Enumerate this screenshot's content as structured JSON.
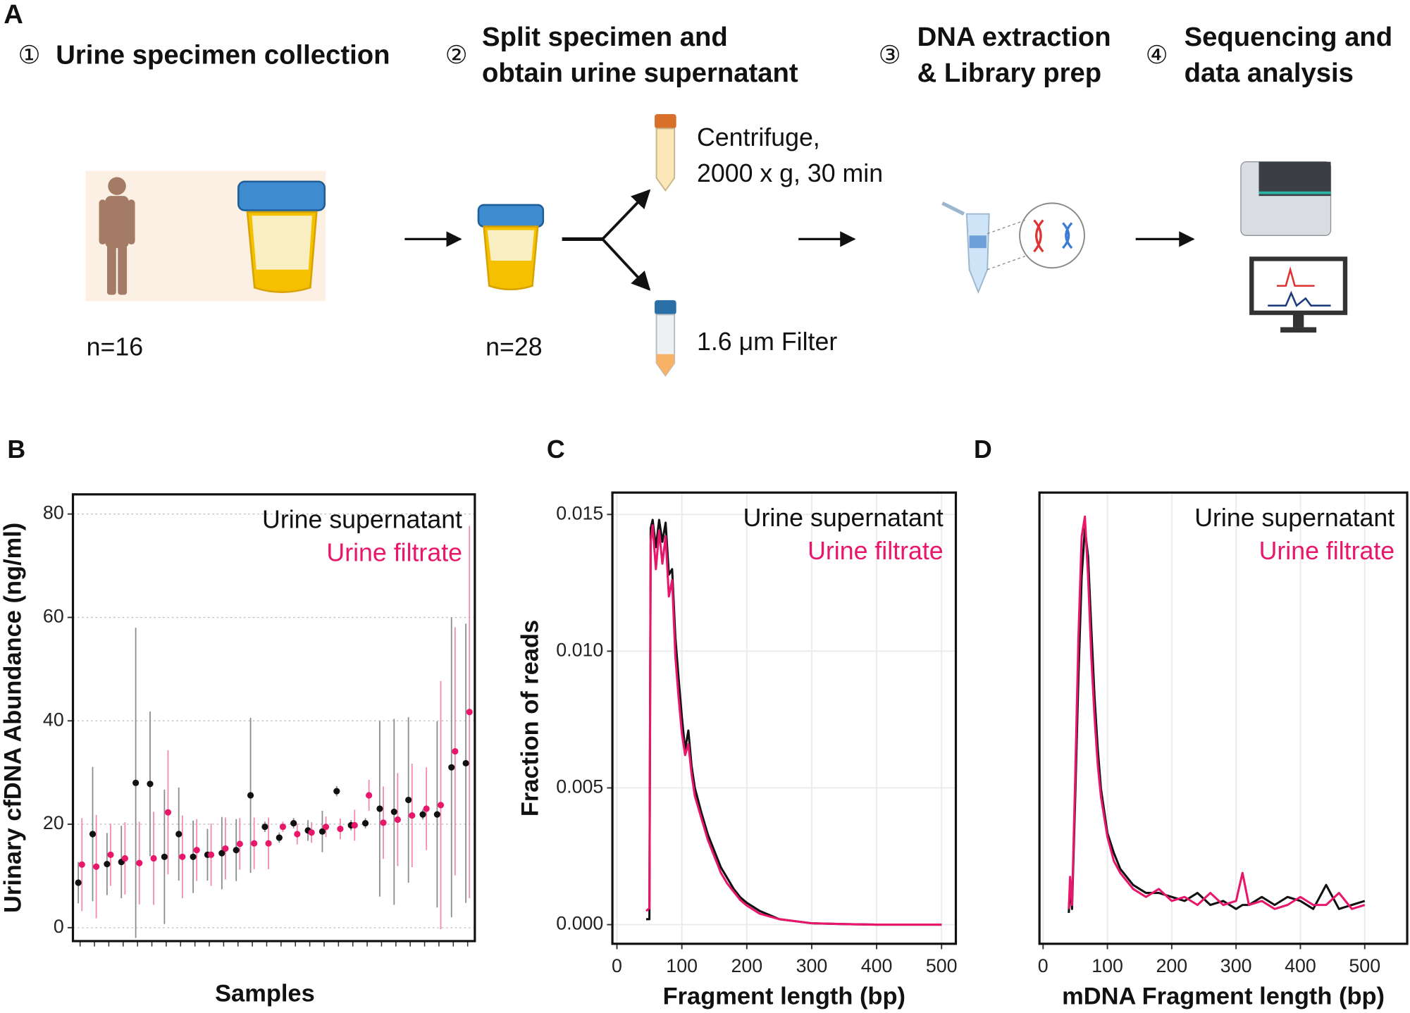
{
  "panel_a": {
    "label": "A",
    "steps": [
      {
        "number": "①",
        "lines": [
          "Urine specimen collection"
        ]
      },
      {
        "number": "②",
        "lines": [
          "Split specimen and",
          "obtain urine supernatant"
        ]
      },
      {
        "number": "③",
        "lines": [
          "DNA extraction",
          "& Library prep"
        ]
      },
      {
        "number": "④",
        "lines": [
          "Sequencing and",
          "data analysis"
        ]
      }
    ],
    "counts": [
      "n=16",
      "n=28"
    ],
    "branches": [
      [
        "Centrifuge,",
        "2000 x g, 30 min"
      ],
      [
        "1.6 μm Filter"
      ]
    ]
  },
  "chart_data": [
    {
      "type": "scatter",
      "panel": "B",
      "ylabel": "Urinary cfDNA Abundance (ng/ml)",
      "xlabel": "Samples",
      "categories": [
        null,
        null,
        null,
        null,
        null,
        null,
        null,
        null,
        null,
        null,
        null,
        null,
        null,
        null,
        null,
        null,
        null,
        null,
        null,
        null,
        null,
        null,
        null,
        null,
        null,
        null,
        null,
        null
      ],
      "series": [
        {
          "name": "Urine supernatant",
          "color": "#111111",
          "error_color": "#8c8c8c",
          "values": [
            8.7,
            18.1,
            12.3,
            12.7,
            28.0,
            27.8,
            13.7,
            18.1,
            13.7,
            14.1,
            14.4,
            15.0,
            25.6,
            19.5,
            17.4,
            20.2,
            18.8,
            18.6,
            26.4,
            19.8,
            20.2,
            23.0,
            22.4,
            24.7,
            21.9,
            21.9,
            31.0,
            31.8
          ],
          "errors": [
            4,
            13,
            6,
            7,
            30,
            14,
            13,
            9,
            7,
            5,
            7,
            6,
            15,
            1,
            1,
            1,
            2,
            4,
            1,
            1,
            1,
            17,
            18,
            16,
            1,
            18,
            29,
            27
          ]
        },
        {
          "name": "Urine filtrate",
          "color": "#e8176b",
          "error_color": "#f08ab0",
          "values": [
            12.2,
            11.8,
            14.1,
            13.4,
            12.5,
            13.4,
            22.3,
            13.7,
            15.0,
            14.1,
            15.3,
            16.2,
            16.3,
            16.3,
            19.5,
            18.1,
            18.4,
            19.5,
            19.1,
            19.8,
            25.6,
            20.3,
            20.9,
            21.7,
            23.0,
            23.7,
            34.1,
            41.7
          ],
          "errors": [
            9,
            10,
            6,
            7,
            8,
            9,
            12,
            8,
            6,
            6,
            6,
            5,
            5,
            5,
            1,
            2,
            2,
            2,
            2,
            3,
            3,
            7,
            9,
            10,
            8,
            24,
            24,
            36
          ]
        }
      ],
      "ylim": [
        -2.6,
        83.8
      ],
      "yticks": [
        0,
        20,
        40,
        60,
        80
      ],
      "grid": true,
      "grid_style": "dotted",
      "legend": "upper right"
    },
    {
      "type": "line",
      "panel": "C",
      "ylabel": "Fraction of reads",
      "xlabel": "Fragment length (bp)",
      "x": [
        45,
        50,
        52,
        55,
        60,
        65,
        70,
        75,
        80,
        85,
        90,
        95,
        100,
        105,
        110,
        115,
        120,
        130,
        140,
        150,
        160,
        170,
        180,
        190,
        200,
        220,
        250,
        300,
        350,
        400,
        450,
        500
      ],
      "series": [
        {
          "name": "Urine supernatant",
          "color": "#111111",
          "values": [
            0.0002,
            0.0002,
            0.0145,
            0.0148,
            0.0138,
            0.0148,
            0.014,
            0.0147,
            0.0128,
            0.013,
            0.0105,
            0.009,
            0.0076,
            0.0064,
            0.0071,
            0.0058,
            0.005,
            0.0041,
            0.0033,
            0.0027,
            0.0021,
            0.0017,
            0.0013,
            0.001,
            0.0008,
            0.0005,
            0.0002,
            5e-05,
            2e-05,
            0,
            0,
            0
          ]
        },
        {
          "name": "Urine filtrate",
          "color": "#e8176b",
          "values": [
            0.0005,
            0.0006,
            0.014,
            0.0146,
            0.013,
            0.0144,
            0.0132,
            0.0142,
            0.012,
            0.0126,
            0.0098,
            0.0083,
            0.007,
            0.0062,
            0.0066,
            0.0055,
            0.0047,
            0.0039,
            0.0031,
            0.0025,
            0.0019,
            0.0015,
            0.0012,
            0.0009,
            0.0007,
            0.0004,
            0.0002,
            5e-05,
            2e-05,
            0,
            0,
            0
          ]
        }
      ],
      "xlim": [
        -7,
        522
      ],
      "xticks": [
        0,
        100,
        200,
        300,
        400,
        500
      ],
      "ylim": [
        -0.0007,
        0.0158
      ],
      "yticks": [
        {
          "value": 0,
          "label": "0.000"
        },
        0.005,
        {
          "value": 0.01,
          "label": "0.010"
        },
        0.015
      ],
      "grid": true,
      "grid_style": "solid",
      "legend": "upper right"
    },
    {
      "type": "line",
      "panel": "D",
      "xlabel": "mDNA Fragment length (bp)",
      "x": [
        40,
        42,
        45,
        50,
        55,
        60,
        65,
        70,
        75,
        80,
        85,
        90,
        100,
        110,
        120,
        130,
        140,
        150,
        160,
        180,
        200,
        220,
        240,
        260,
        280,
        300,
        310,
        320,
        340,
        360,
        380,
        400,
        420,
        440,
        460,
        480,
        500
      ],
      "series": [
        {
          "name": "Urine supernatant",
          "color": "#111111",
          "values": [
            0.01,
            0.08,
            0.02,
            0.3,
            0.6,
            0.85,
            0.97,
            0.9,
            0.72,
            0.55,
            0.42,
            0.32,
            0.21,
            0.16,
            0.12,
            0.1,
            0.08,
            0.07,
            0.06,
            0.06,
            0.05,
            0.04,
            0.06,
            0.03,
            0.04,
            0.02,
            0.03,
            0.03,
            0.05,
            0.03,
            0.05,
            0.04,
            0.02,
            0.08,
            0.02,
            0.03,
            0.04
          ]
        },
        {
          "name": "Urine filtrate",
          "color": "#e8176b",
          "values": [
            0.02,
            0.1,
            0.03,
            0.35,
            0.7,
            0.95,
            1.0,
            0.85,
            0.65,
            0.5,
            0.38,
            0.3,
            0.2,
            0.14,
            0.11,
            0.09,
            0.07,
            0.06,
            0.05,
            0.07,
            0.04,
            0.05,
            0.03,
            0.06,
            0.03,
            0.04,
            0.11,
            0.03,
            0.04,
            0.02,
            0.03,
            0.05,
            0.03,
            0.03,
            0.06,
            0.02,
            0.03
          ]
        }
      ],
      "xlim": [
        -5.6,
        566
      ],
      "xticks": [
        0,
        100,
        200,
        300,
        400,
        500
      ],
      "ylim": [
        -0.067,
        1.06
      ],
      "grid": true,
      "grid_style": "solid",
      "legend": "upper right"
    }
  ]
}
